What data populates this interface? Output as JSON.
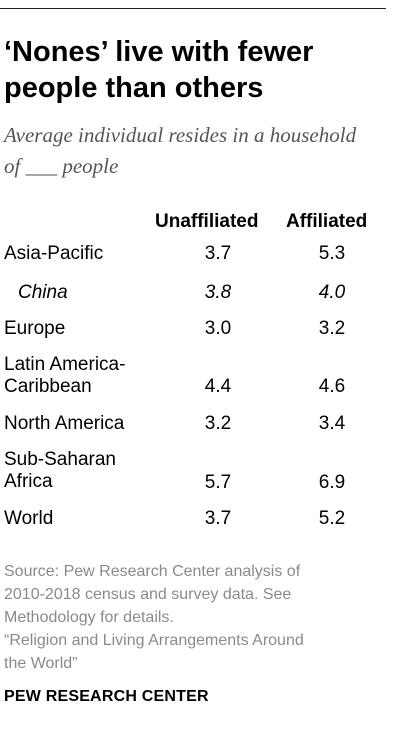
{
  "title": "‘Nones’ live with fewer people than others",
  "subtitle": "Average individual resides in a household of ___ people",
  "chart_data": {
    "type": "table",
    "columns": [
      "Unaffiliated",
      "Affiliated"
    ],
    "rows": [
      {
        "label": "Asia-Pacific",
        "values": [
          "3.7",
          "5.3"
        ],
        "italic": false
      },
      {
        "label": "China",
        "values": [
          "3.8",
          "4.0"
        ],
        "italic": true
      },
      {
        "label": "Europe",
        "values": [
          "3.0",
          "3.2"
        ],
        "italic": false
      },
      {
        "label": "Latin America-Caribbean",
        "values": [
          "4.4",
          "4.6"
        ],
        "italic": false
      },
      {
        "label": "North America",
        "values": [
          "3.2",
          "3.4"
        ],
        "italic": false
      },
      {
        "label": "Sub-Saharan Africa",
        "values": [
          "5.7",
          "6.9"
        ],
        "italic": false
      },
      {
        "label": "World",
        "values": [
          "3.7",
          "5.2"
        ],
        "italic": false
      }
    ]
  },
  "source": {
    "line1": "Source: Pew Research Center analysis of",
    "line2": "2010-2018 census and survey data. See",
    "line3": "Methodology for details.",
    "line4": "“Religion and Living Arrangements Around",
    "line5": "the World”"
  },
  "brand": "PEW RESEARCH CENTER"
}
